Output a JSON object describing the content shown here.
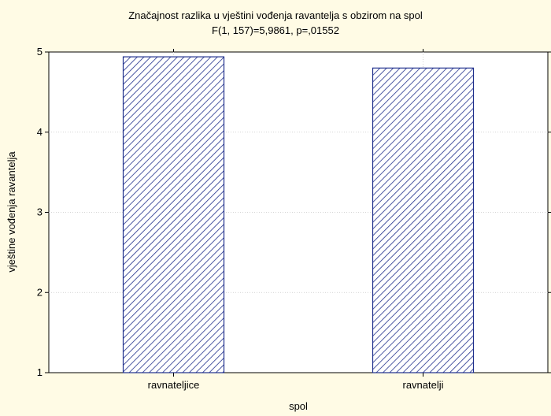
{
  "chart_data": {
    "type": "bar",
    "title": "Značajnost razlika u vještini vođenja ravantelja s obzirom na spol",
    "subtitle": "F(1, 157)=5,9861, p=,01552",
    "xlabel": "spol",
    "ylabel": "vještine vođenja ravantelja",
    "categories": [
      "ravnateljice",
      "ravnatelji"
    ],
    "values": [
      4.94,
      4.8
    ],
    "ylim": [
      1,
      5
    ],
    "yticks": [
      1,
      2,
      3,
      4,
      5
    ],
    "grid": true,
    "legend": "none",
    "bar_pattern": "diagonal-hatch",
    "colors": {
      "background": "#fffbe5",
      "plot_background": "#ffffff",
      "bar_stroke": "#1f2f8c",
      "hatch": "#1f2f8c",
      "grid": "#c8c8c8",
      "axis": "#000000"
    }
  }
}
